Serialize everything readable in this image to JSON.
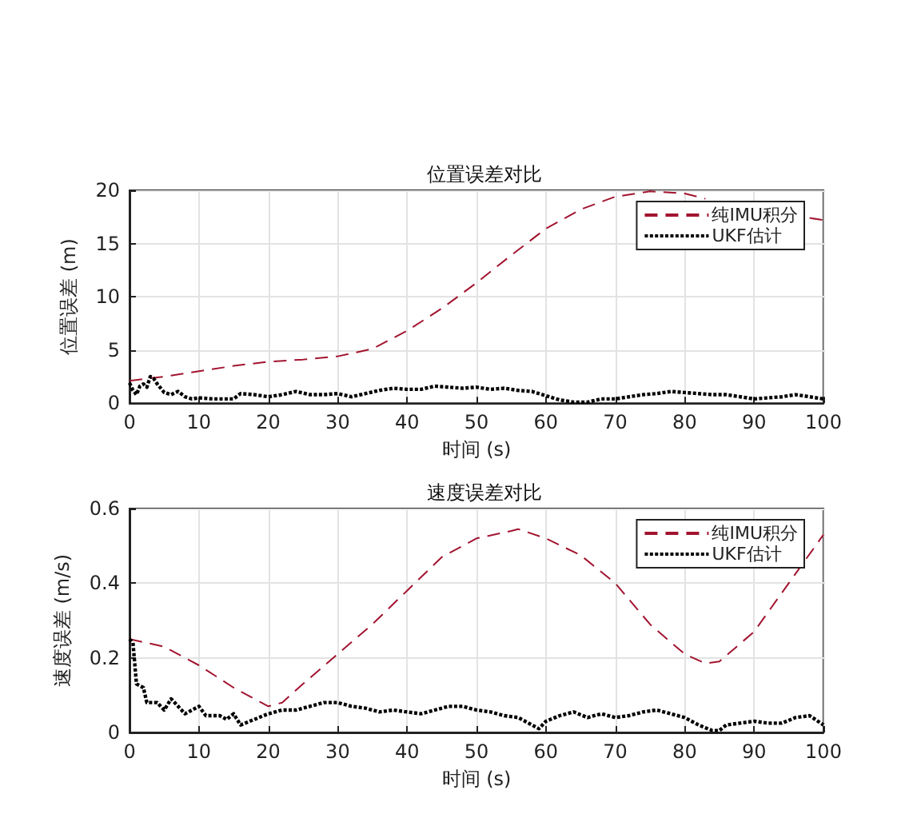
{
  "chart_data": [
    {
      "type": "line",
      "title": "位置误差对比",
      "xlabel": "时间 (s)",
      "ylabel": "位置误差 (m)",
      "xlim": [
        0,
        100
      ],
      "xticks": [
        0,
        10,
        20,
        30,
        40,
        50,
        60,
        70,
        80,
        90,
        100
      ],
      "ylim": [
        0,
        20
      ],
      "yticks": [
        0,
        5,
        10,
        15,
        20
      ],
      "grid": true,
      "legend": "top right",
      "series": [
        {
          "name": "纯IMU积分",
          "color": "#a2142f",
          "line_style": "dashed",
          "x": [
            0,
            5,
            10,
            15,
            20,
            25,
            30,
            35,
            40,
            45,
            50,
            55,
            60,
            65,
            70,
            75,
            80,
            83,
            90,
            98,
            100
          ],
          "values": [
            2.1,
            2.5,
            3.0,
            3.5,
            3.9,
            4.1,
            4.4,
            5.1,
            6.8,
            8.9,
            11.3,
            13.9,
            16.4,
            18.2,
            19.4,
            19.9,
            19.7,
            19.2,
            null,
            17.4,
            17.2
          ]
        },
        {
          "name": "UKF估计",
          "color": "#000000",
          "line_style": "dotted",
          "x": [
            0,
            0.5,
            1,
            1.5,
            2,
            2.5,
            3,
            3.5,
            4,
            5,
            6,
            7,
            8,
            9,
            10,
            12,
            14,
            15,
            16,
            18,
            20,
            22,
            24,
            26,
            28,
            30,
            32,
            34,
            36,
            38,
            40,
            42,
            44,
            46,
            48,
            50,
            52,
            54,
            56,
            58,
            60,
            62,
            64,
            66,
            68,
            70,
            72,
            74,
            76,
            78,
            80,
            82,
            84,
            86,
            88,
            90,
            92,
            94,
            96,
            98,
            100
          ],
          "values": [
            1.9,
            1.2,
            0.8,
            1.6,
            1.8,
            1.5,
            2.5,
            2.3,
            1.8,
            1.0,
            0.8,
            1.1,
            0.6,
            0.4,
            0.5,
            0.4,
            0.4,
            0.4,
            0.9,
            0.8,
            0.6,
            0.8,
            1.1,
            0.8,
            0.8,
            0.9,
            0.6,
            0.9,
            1.2,
            1.4,
            1.3,
            1.3,
            1.6,
            1.5,
            1.4,
            1.5,
            1.3,
            1.4,
            1.2,
            1.1,
            0.7,
            0.3,
            0.1,
            0.1,
            0.4,
            0.4,
            0.6,
            0.8,
            0.9,
            1.1,
            1.0,
            0.9,
            0.8,
            0.8,
            0.6,
            0.4,
            0.5,
            0.6,
            0.8,
            0.6,
            0.4
          ]
        }
      ]
    },
    {
      "type": "line",
      "title": "速度误差对比",
      "xlabel": "时间 (s)",
      "ylabel": "速度误差 (m/s)",
      "xlim": [
        0,
        100
      ],
      "xticks": [
        0,
        10,
        20,
        30,
        40,
        50,
        60,
        70,
        80,
        90,
        100
      ],
      "ylim": [
        0,
        0.6
      ],
      "yticks": [
        0,
        0.2,
        0.4,
        0.6
      ],
      "grid": true,
      "legend": "top right",
      "series": [
        {
          "name": "纯IMU积分",
          "color": "#a2142f",
          "line_style": "dashed",
          "x": [
            0,
            5,
            10,
            15,
            20,
            22,
            25,
            30,
            35,
            40,
            45,
            50,
            55,
            56,
            60,
            65,
            70,
            75,
            80,
            83,
            85,
            90,
            95,
            100
          ],
          "values": [
            0.25,
            0.23,
            0.18,
            0.12,
            0.07,
            0.08,
            0.13,
            0.21,
            0.29,
            0.38,
            0.47,
            0.52,
            0.54,
            0.545,
            0.52,
            0.475,
            0.4,
            0.29,
            0.21,
            0.185,
            0.19,
            0.27,
            0.4,
            0.53
          ]
        },
        {
          "name": "UKF估计",
          "color": "#000000",
          "line_style": "dotted",
          "x": [
            0,
            0.5,
            1,
            2,
            2.5,
            4,
            5,
            6,
            7,
            8,
            9,
            10,
            11,
            13,
            14,
            15,
            16,
            18,
            20,
            22,
            24,
            26,
            28,
            30,
            32,
            34,
            36,
            38,
            40,
            42,
            44,
            46,
            48,
            50,
            52,
            54,
            56,
            58,
            59,
            60,
            62,
            64,
            66,
            68,
            70,
            72,
            74,
            76,
            78,
            80,
            82,
            84,
            85,
            86,
            88,
            90,
            92,
            94,
            96,
            98,
            100
          ],
          "values": [
            0.25,
            0.24,
            0.13,
            0.12,
            0.08,
            0.08,
            0.06,
            0.09,
            0.07,
            0.05,
            0.06,
            0.07,
            0.045,
            0.045,
            0.035,
            0.05,
            0.02,
            0.035,
            0.05,
            0.06,
            0.06,
            0.07,
            0.08,
            0.08,
            0.07,
            0.065,
            0.055,
            0.06,
            0.055,
            0.05,
            0.06,
            0.07,
            0.07,
            0.06,
            0.055,
            0.045,
            0.04,
            0.02,
            0.01,
            0.03,
            0.045,
            0.055,
            0.04,
            0.05,
            0.04,
            0.045,
            0.055,
            0.06,
            0.05,
            0.04,
            0.02,
            0.005,
            0.005,
            0.02,
            0.025,
            0.03,
            0.025,
            0.025,
            0.04,
            0.045,
            0.02
          ]
        }
      ]
    }
  ]
}
